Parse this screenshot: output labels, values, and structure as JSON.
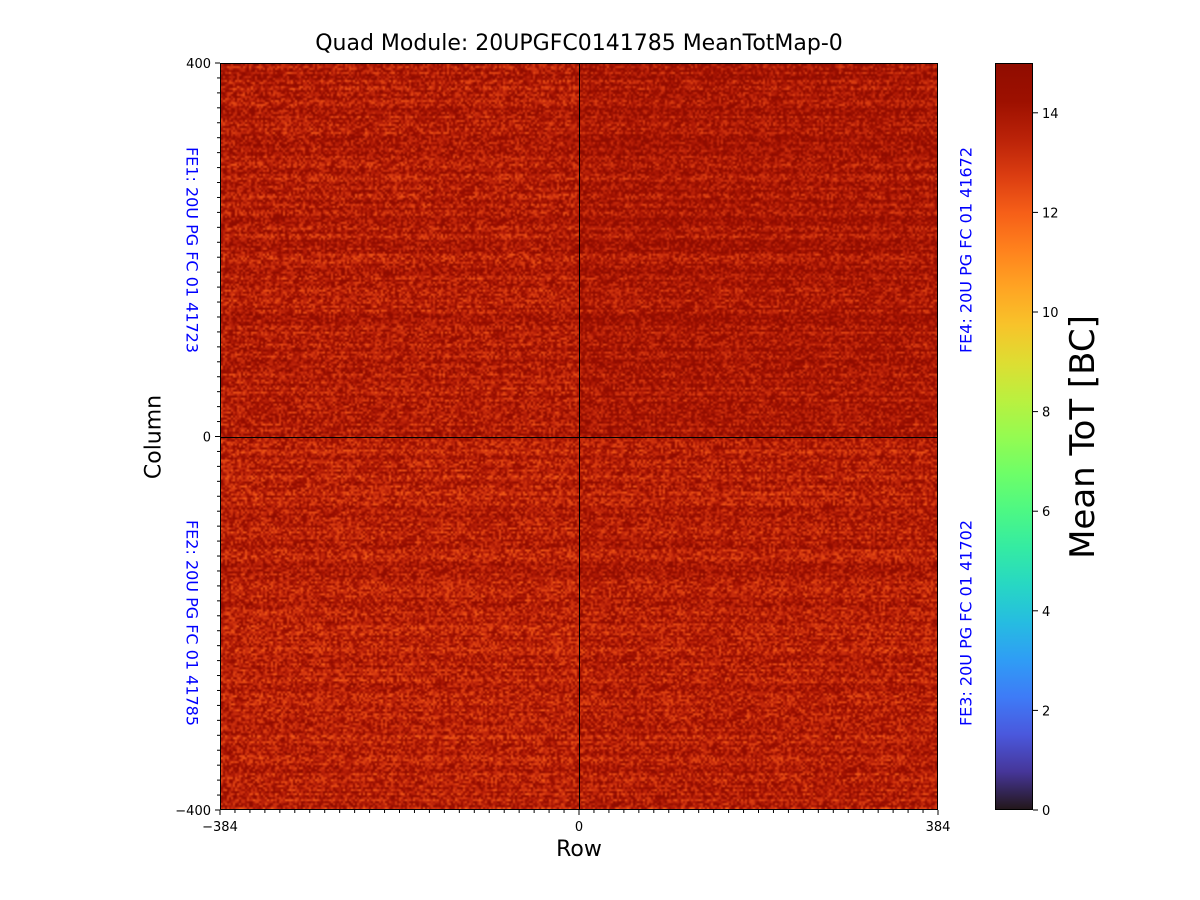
{
  "chart_data": {
    "type": "heatmap",
    "title": "Quad Module: 20UPGFC0141785 MeanTotMap-0",
    "xlabel": "Row",
    "ylabel": "Column",
    "xlim": [
      -384,
      384
    ],
    "ylim": [
      -400,
      400
    ],
    "x_ticks": [
      "−384",
      "0",
      "384"
    ],
    "y_ticks": [
      "400",
      "0",
      "−400"
    ],
    "x_tick_values": [
      -384,
      0,
      384
    ],
    "y_tick_values": [
      400,
      0,
      -400
    ],
    "colorbar": {
      "label": "Mean ToT [BC]",
      "range": [
        0,
        15
      ],
      "ticks": [
        "0",
        "2",
        "4",
        "6",
        "8",
        "10",
        "12",
        "14"
      ],
      "tick_values": [
        0,
        2,
        4,
        6,
        8,
        10,
        12,
        14
      ],
      "colormap": "turbo"
    },
    "quadrants": [
      {
        "name": "FE1: 20U PG FC 01 41723",
        "position": "top-left",
        "x_range": [
          -384,
          0
        ],
        "y_range": [
          0,
          400
        ],
        "typical_mean_tot": 13.8,
        "spread": 1.2
      },
      {
        "name": "FE4: 20U PG FC 01 41672",
        "position": "top-right",
        "x_range": [
          0,
          384
        ],
        "y_range": [
          0,
          400
        ],
        "typical_mean_tot": 14.0,
        "spread": 1.1
      },
      {
        "name": "FE2: 20U PG FC 01 41785",
        "position": "bottom-left",
        "x_range": [
          -384,
          0
        ],
        "y_range": [
          -400,
          0
        ],
        "typical_mean_tot": 13.6,
        "spread": 1.2
      },
      {
        "name": "FE3: 20U PG FC 01 41702",
        "position": "bottom-right",
        "x_range": [
          0,
          384
        ],
        "y_range": [
          -400,
          0
        ],
        "typical_mean_tot": 13.7,
        "spread": 1.2
      }
    ]
  }
}
